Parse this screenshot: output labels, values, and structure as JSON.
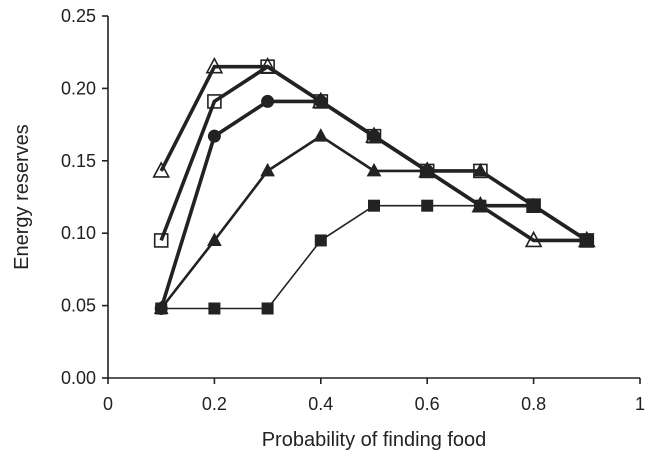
{
  "chart_data": {
    "type": "line",
    "title": "",
    "xlabel": "Probability of finding food",
    "ylabel": "Energy reserves",
    "xlim": [
      0,
      1
    ],
    "ylim": [
      0,
      0.25
    ],
    "x_ticks": [
      0,
      0.2,
      0.4,
      0.6,
      0.8,
      1
    ],
    "x_tick_labels": [
      "0",
      "0.2",
      "0.4",
      "0.6",
      "0.8",
      "1"
    ],
    "y_ticks": [
      0,
      0.05,
      0.1,
      0.15,
      0.2,
      0.25
    ],
    "y_tick_labels": [
      "0.00",
      "0.05",
      "0.10",
      "0.15",
      "0.20",
      "0.25"
    ],
    "grid": false,
    "legend": "none",
    "series": [
      {
        "marker": "square-filled",
        "weight": "thin",
        "x": [
          0.1,
          0.2,
          0.3,
          0.4,
          0.5,
          0.6,
          0.7,
          0.8,
          0.9
        ],
        "y": [
          0.048,
          0.048,
          0.048,
          0.095,
          0.119,
          0.119,
          0.119,
          0.119,
          0.095
        ]
      },
      {
        "marker": "triangle-filled",
        "weight": "medium",
        "x": [
          0.1,
          0.2,
          0.3,
          0.4,
          0.5,
          0.6,
          0.7,
          0.8,
          0.9
        ],
        "y": [
          0.048,
          0.095,
          0.143,
          0.167,
          0.143,
          0.143,
          0.143,
          0.119,
          0.095
        ]
      },
      {
        "marker": "circle-filled",
        "weight": "thick",
        "x": [
          0.1,
          0.2,
          0.3,
          0.4,
          0.5,
          0.6,
          0.7,
          0.8,
          0.9
        ],
        "y": [
          0.048,
          0.167,
          0.191,
          0.191,
          0.167,
          0.143,
          0.119,
          0.119,
          0.095
        ]
      },
      {
        "marker": "square-open",
        "weight": "thick",
        "x": [
          0.1,
          0.2,
          0.3,
          0.4,
          0.5,
          0.6,
          0.7,
          0.8,
          0.9
        ],
        "y": [
          0.095,
          0.191,
          0.215,
          0.191,
          0.167,
          0.143,
          0.143,
          0.119,
          0.095
        ]
      },
      {
        "marker": "triangle-open",
        "weight": "thick",
        "x": [
          0.1,
          0.2,
          0.3,
          0.4,
          0.5,
          0.6,
          0.7,
          0.8,
          0.9
        ],
        "y": [
          0.143,
          0.215,
          0.215,
          0.191,
          0.167,
          0.143,
          0.119,
          0.095,
          0.095
        ]
      }
    ]
  }
}
